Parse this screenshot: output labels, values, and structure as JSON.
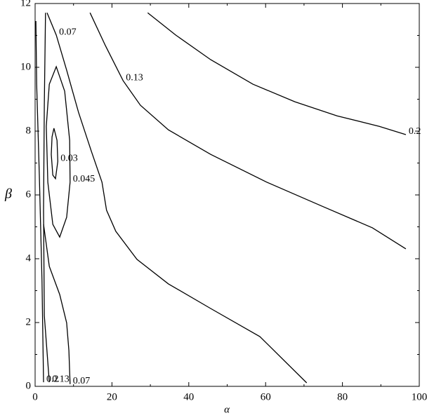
{
  "chart_data": {
    "type": "contour",
    "x_label": "α",
    "y_label": "β",
    "xlim": [
      0,
      100
    ],
    "ylim": [
      0,
      12
    ],
    "xticks": [
      0,
      20,
      40,
      60,
      80,
      100
    ],
    "yticks": [
      0,
      2,
      4,
      6,
      8,
      10,
      12
    ],
    "color": "#000000",
    "contours": [
      {
        "level": 0.2,
        "x": [
          29.3,
          36.6,
          45.7,
          56.7,
          67.6,
          78.6,
          89.6,
          96.5
        ],
        "y": [
          11.71,
          11.01,
          10.24,
          9.47,
          8.92,
          8.48,
          8.15,
          7.89
        ]
      },
      {
        "level": 0.2,
        "x": [
          0.2,
          0.4,
          1.1,
          1.8,
          2.2
        ],
        "y": [
          11.45,
          9.47,
          6.62,
          3.32,
          0.13
        ]
      },
      {
        "level": 0.13,
        "x": [
          14.3,
          18.3,
          22.9,
          27.4,
          34.7,
          45.7,
          60.3,
          75.0,
          87.8,
          96.5
        ],
        "y": [
          11.71,
          10.68,
          9.58,
          8.81,
          8.04,
          7.27,
          6.4,
          5.63,
          4.97,
          4.31
        ]
      },
      {
        "level": 0.13,
        "x": [
          2.7,
          2.4,
          2.2,
          2.4,
          3.7
        ],
        "y": [
          11.71,
          8.81,
          5.52,
          2.22,
          0.13
        ]
      },
      {
        "level": 0.07,
        "x": [
          3.1,
          5.5,
          8.2,
          11.3,
          14.6,
          17.4,
          18.6,
          21.0,
          26.5,
          34.7,
          45.7,
          58.5,
          70.7
        ],
        "y": [
          11.71,
          11.01,
          9.91,
          8.59,
          7.38,
          6.4,
          5.52,
          4.86,
          3.98,
          3.21,
          2.44,
          1.56,
          0.11
        ]
      },
      {
        "level": 0.07,
        "x": [
          2.2,
          3.7,
          6.4,
          8.2,
          8.8,
          9.1
        ],
        "y": [
          5.08,
          3.76,
          2.88,
          1.99,
          1.12,
          0.07
        ]
      },
      {
        "level": 0.045,
        "closed": true,
        "x": [
          5.5,
          7.7,
          9.0,
          9.1,
          8.2,
          6.4,
          4.6,
          3.3,
          2.9,
          3.7
        ],
        "y": [
          10.02,
          9.25,
          7.71,
          6.4,
          5.3,
          4.68,
          5.08,
          6.4,
          8.15,
          9.47
        ]
      },
      {
        "level": 0.03,
        "closed": true,
        "x": [
          4.9,
          5.7,
          5.9,
          5.3,
          4.6,
          4.2,
          4.4
        ],
        "y": [
          8.09,
          7.71,
          7.05,
          6.51,
          6.62,
          7.27,
          7.82
        ]
      }
    ]
  }
}
